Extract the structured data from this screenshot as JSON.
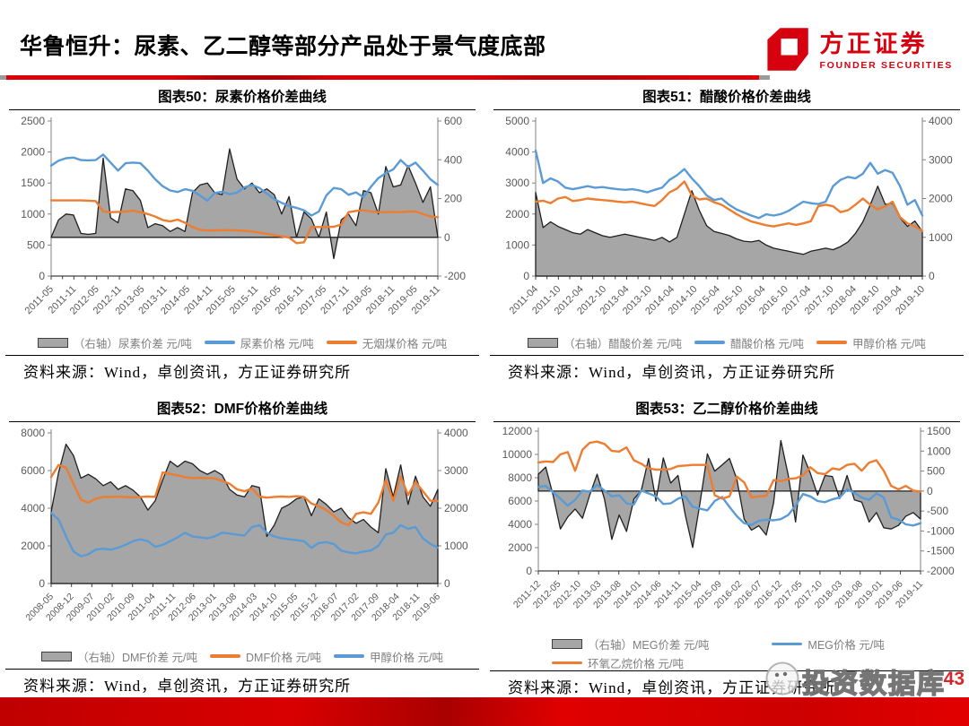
{
  "header": {
    "title": "华鲁恒升：尿素、乙二醇等部分产品处于景气度底部",
    "logo": {
      "name_cn": "方正证券",
      "name_en": "FOUNDER SECURITIES",
      "color": "#d7000f"
    }
  },
  "footer": {
    "page_number": "43",
    "watermark_text": "投资数据库",
    "bar_color": "#d40000"
  },
  "colors": {
    "blue": "#5b9bd5",
    "orange": "#ed7d31",
    "gray_fill": "#a6a6a6",
    "area_stroke": "#1f1f1f",
    "axis": "#808080",
    "tick_text": "#595959",
    "legend_text": "#7f7f7f"
  },
  "chart_data": [
    {
      "id": "figure-50",
      "type": "area+line",
      "title": "图表50：尿素价格价差曲线",
      "source": "资料来源：Wind，卓创资讯，方正证券研究所",
      "left_axis": {
        "min": 0,
        "max": 2500,
        "ticks": [
          0,
          500,
          1000,
          1500,
          2000,
          2500
        ]
      },
      "right_axis": {
        "min": -200,
        "max": 600,
        "ticks": [
          -200,
          0,
          200,
          400,
          600
        ]
      },
      "x_labels": [
        "2011-05",
        "2011-11",
        "2012-05",
        "2012-11",
        "2013-05",
        "2013-11",
        "2014-05",
        "2014-11",
        "2015-05",
        "2015-11",
        "2016-05",
        "2016-11",
        "2017-05",
        "2017-11",
        "2018-05",
        "2018-11",
        "2019-05",
        "2019-11"
      ],
      "series": [
        {
          "name": "（右轴）尿素价差 元/吨",
          "axis": "right",
          "kind": "area",
          "color": "#a6a6a6",
          "baseline": 0,
          "y": [
            0,
            90,
            120,
            115,
            20,
            15,
            20,
            408,
            100,
            75,
            250,
            240,
            190,
            50,
            70,
            60,
            30,
            50,
            30,
            230,
            270,
            280,
            230,
            220,
            456,
            300,
            250,
            280,
            230,
            250,
            220,
            120,
            210,
            0,
            130,
            95,
            0,
            130,
            -110,
            90,
            120,
            60,
            240,
            230,
            120,
            365,
            260,
            270,
            370,
            280,
            180,
            260,
            0
          ]
        },
        {
          "name": "尿素价格 元/吨",
          "axis": "left",
          "kind": "line",
          "color": "#5b9bd5",
          "y": [
            1780,
            1860,
            1900,
            1910,
            1870,
            1865,
            1870,
            1960,
            1830,
            1700,
            1820,
            1830,
            1820,
            1700,
            1560,
            1450,
            1380,
            1355,
            1400,
            1375,
            1300,
            1215,
            1340,
            1360,
            1320,
            1345,
            1430,
            1470,
            1420,
            1330,
            1240,
            1180,
            1130,
            1100,
            1060,
            975,
            1040,
            1300,
            1420,
            1400,
            1310,
            1350,
            1270,
            1440,
            1580,
            1660,
            1720,
            1870,
            1760,
            1830,
            1700,
            1560,
            1470
          ]
        },
        {
          "name": "无烟煤价格 元/吨",
          "axis": "left",
          "kind": "line",
          "color": "#ed7d31",
          "y": [
            1220,
            1220,
            1220,
            1220,
            1220,
            1215,
            1210,
            1040,
            1030,
            1035,
            1040,
            1055,
            1030,
            1000,
            960,
            905,
            880,
            910,
            860,
            790,
            745,
            735,
            735,
            740,
            740,
            735,
            730,
            720,
            700,
            680,
            660,
            640,
            620,
            530,
            545,
            790,
            790,
            790,
            795,
            830,
            1030,
            1050,
            1060,
            1040,
            1030,
            1030,
            1035,
            1030,
            1040,
            1040,
            1000,
            960,
            950
          ]
        }
      ]
    },
    {
      "id": "figure-51",
      "type": "area+line",
      "title": "图表51：醋酸价格价差曲线",
      "source": "资料来源：Wind，卓创资讯，方正证券研究所",
      "left_axis": {
        "min": 0,
        "max": 5000,
        "ticks": [
          0,
          1000,
          2000,
          3000,
          4000,
          5000
        ]
      },
      "right_axis": {
        "min": 0,
        "max": 4000,
        "ticks": [
          0,
          1000,
          2000,
          3000,
          4000
        ]
      },
      "x_labels": [
        "2011-04",
        "2011-10",
        "2012-04",
        "2012-10",
        "2013-04",
        "2013-10",
        "2014-04",
        "2014-10",
        "2015-04",
        "2015-10",
        "2016-04",
        "2016-10",
        "2017-04",
        "2017-10",
        "2018-04",
        "2018-10",
        "2019-04",
        "2019-10"
      ],
      "series": [
        {
          "name": "（右轴）醋酸价差 元/吨",
          "axis": "right",
          "kind": "area",
          "color": "#a6a6a6",
          "baseline": 0,
          "y": [
            2160,
            1250,
            1400,
            1280,
            1200,
            1120,
            1080,
            1200,
            1120,
            1040,
            1000,
            1040,
            1080,
            1040,
            1000,
            960,
            920,
            1000,
            880,
            1000,
            1600,
            2200,
            1700,
            1300,
            1150,
            1100,
            1050,
            960,
            900,
            880,
            920,
            800,
            720,
            680,
            640,
            600,
            560,
            640,
            680,
            720,
            680,
            760,
            880,
            1100,
            1400,
            1840,
            2320,
            1850,
            1880,
            1500,
            1280,
            1420,
            1150
          ]
        },
        {
          "name": "醋酸价格 元/吨",
          "axis": "left",
          "kind": "line",
          "color": "#5b9bd5",
          "y": [
            4050,
            3000,
            3150,
            3050,
            2850,
            2800,
            2850,
            2900,
            2850,
            2870,
            2830,
            2800,
            2780,
            2800,
            2760,
            2700,
            2780,
            2850,
            3100,
            3250,
            3450,
            3150,
            2900,
            2600,
            2450,
            2500,
            2300,
            2150,
            2050,
            1950,
            1870,
            1990,
            1950,
            2000,
            2100,
            2250,
            2400,
            2350,
            2320,
            2400,
            2900,
            3100,
            3200,
            3150,
            3300,
            3650,
            3300,
            3420,
            3330,
            2900,
            2300,
            2450,
            1950
          ]
        },
        {
          "name": "甲醇价格 元/吨",
          "axis": "left",
          "kind": "line",
          "color": "#ed7d31",
          "y": [
            2400,
            2430,
            2350,
            2500,
            2550,
            2420,
            2450,
            2500,
            2470,
            2450,
            2430,
            2400,
            2380,
            2400,
            2350,
            2300,
            2260,
            2450,
            2700,
            2820,
            3050,
            2600,
            2470,
            2500,
            2380,
            2300,
            2150,
            2000,
            1870,
            1760,
            1700,
            1640,
            1600,
            1650,
            1700,
            1650,
            1700,
            1770,
            2250,
            2300,
            2250,
            2060,
            2120,
            2300,
            2500,
            2300,
            2150,
            2250,
            2400,
            1900,
            1700,
            1600,
            1450
          ]
        }
      ]
    },
    {
      "id": "figure-52",
      "type": "area+line",
      "title": "图表52：DMF价格价差曲线",
      "source": "资料来源：Wind，卓创资讯，方正证券研究所",
      "left_axis": {
        "min": 0,
        "max": 8000,
        "ticks": [
          0,
          2000,
          4000,
          6000,
          8000
        ]
      },
      "right_axis": {
        "min": 0,
        "max": 4000,
        "ticks": [
          0,
          1000,
          2000,
          3000,
          4000
        ]
      },
      "x_labels": [
        "2008-05",
        "2008-12",
        "2009-07",
        "2010-02",
        "2010-09",
        "2011-04",
        "2011-11",
        "2012-06",
        "2013-01",
        "2013-08",
        "2014-03",
        "2014-10",
        "2015-05",
        "2015-12",
        "2016-07",
        "2017-02",
        "2017-09",
        "2018-04",
        "2018-11",
        "2019-06"
      ],
      "series": [
        {
          "name": "（右轴）DMF价差 元/吨",
          "axis": "right",
          "kind": "area",
          "color": "#a6a6a6",
          "baseline": 0,
          "y": [
            1900,
            2950,
            3700,
            3400,
            2800,
            2900,
            2780,
            2600,
            2700,
            2500,
            2600,
            2480,
            2300,
            1950,
            2200,
            2750,
            3250,
            3100,
            3250,
            3180,
            3000,
            2900,
            3000,
            2880,
            2500,
            2350,
            2300,
            2600,
            2550,
            1250,
            1550,
            2000,
            2100,
            2250,
            2300,
            1800,
            2250,
            2100,
            1900,
            2000,
            1750,
            1600,
            1700,
            1500,
            1350,
            3050,
            2300,
            3150,
            2100,
            2850,
            2300,
            2050,
            2500
          ]
        },
        {
          "name": "DMF价格 元/吨",
          "axis": "left",
          "kind": "line",
          "color": "#ed7d31",
          "y": [
            5650,
            6300,
            6150,
            5300,
            4450,
            4300,
            4500,
            4600,
            4600,
            4620,
            4600,
            4580,
            4600,
            4620,
            4600,
            5900,
            5820,
            5750,
            5650,
            5600,
            5620,
            5600,
            5580,
            5450,
            5300,
            5000,
            4900,
            5050,
            4620,
            4560,
            4600,
            4620,
            4600,
            4640,
            4600,
            4250,
            4100,
            3900,
            3600,
            3250,
            3100,
            3700,
            3780,
            3700,
            4300,
            5500,
            4400,
            5700,
            4700,
            5400,
            4900,
            4400,
            4380
          ]
        },
        {
          "name": "甲醇价格 元/吨",
          "axis": "left",
          "kind": "line",
          "color": "#5b9bd5",
          "y": [
            3750,
            3400,
            2500,
            1700,
            1450,
            1550,
            1800,
            1850,
            1800,
            1900,
            2050,
            2250,
            2350,
            2250,
            1950,
            2050,
            2250,
            2450,
            2700,
            2500,
            2450,
            2400,
            2500,
            2700,
            2650,
            2600,
            2550,
            3000,
            3100,
            2700,
            2500,
            2400,
            2350,
            2300,
            2250,
            1900,
            2150,
            2200,
            2100,
            1750,
            1650,
            1600,
            1700,
            1750,
            2000,
            2600,
            2700,
            3100,
            2900,
            3000,
            2400,
            2100,
            1900
          ]
        }
      ]
    },
    {
      "id": "figure-53",
      "type": "area+line",
      "title": "图表53：乙二醇价格价差曲线",
      "source": "资料来源：Wind，卓创资讯，方正证券研究所",
      "left_axis": {
        "min": 0,
        "max": 12000,
        "ticks": [
          0,
          2000,
          4000,
          6000,
          8000,
          10000,
          12000
        ]
      },
      "right_axis": {
        "min": -2000,
        "max": 1500,
        "ticks": [
          -2000,
          -1500,
          -1000,
          -500,
          0,
          500,
          1000,
          1500
        ]
      },
      "x_labels": [
        "2011-12",
        "2012-05",
        "2012-10",
        "2013-03",
        "2013-08",
        "2014-01",
        "2014-06",
        "2014-11",
        "2015-04",
        "2015-09",
        "2016-02",
        "2016-07",
        "2016-12",
        "2017-05",
        "2017-10",
        "2018-03",
        "2018-08",
        "2019-01",
        "2019-06",
        "2019-11"
      ],
      "legend_break": 2,
      "series": [
        {
          "name": "（右轴）MEG价差 元/吨",
          "axis": "right",
          "kind": "area",
          "color": "#a6a6a6",
          "baseline": 0,
          "y": [
            420,
            600,
            -100,
            -950,
            -650,
            -450,
            -680,
            -100,
            420,
            -200,
            -1210,
            -600,
            -1010,
            -200,
            13,
            815,
            -250,
            830,
            200,
            390,
            -600,
            -1415,
            -300,
            930,
            500,
            655,
            815,
            300,
            -700,
            -980,
            -870,
            -1100,
            -300,
            1265,
            400,
            -775,
            900,
            450,
            -105,
            390,
            365,
            -190,
            390,
            -220,
            -280,
            -775,
            -540,
            -920,
            -950,
            -860,
            -630,
            -540,
            -700
          ]
        },
        {
          "name": "MEG价格 元/吨",
          "axis": "left",
          "kind": "line",
          "color": "#5b9bd5",
          "y": [
            7200,
            7300,
            6750,
            6200,
            5600,
            6100,
            6900,
            6800,
            7400,
            6900,
            6400,
            6500,
            5800,
            5700,
            6900,
            6650,
            6400,
            5750,
            5800,
            6200,
            6400,
            5500,
            5350,
            5200,
            6000,
            6350,
            5500,
            4700,
            4100,
            3950,
            4300,
            4400,
            4350,
            4450,
            4800,
            5600,
            6600,
            6400,
            6000,
            5900,
            6150,
            6300,
            7000,
            6700,
            6300,
            6100,
            6650,
            6300,
            4600,
            4400,
            4000,
            3900,
            4100
          ]
        },
        {
          "name": "环氧乙烷价格 元/吨",
          "axis": "left",
          "kind": "line",
          "color": "#ed7d31",
          "y": [
            9300,
            9400,
            9350,
            10000,
            10200,
            8600,
            10400,
            11000,
            11100,
            10900,
            10300,
            10250,
            10600,
            9500,
            9200,
            8800,
            8700,
            8700,
            8750,
            9000,
            9050,
            9100,
            9100,
            9100,
            6500,
            6200,
            6400,
            8100,
            7600,
            6300,
            6400,
            6450,
            7800,
            7700,
            7900,
            7950,
            8200,
            8900,
            8400,
            8300,
            8800,
            8700,
            9100,
            9200,
            8600,
            9300,
            9500,
            8600,
            7300,
            7000,
            7300,
            6900,
            6800
          ]
        }
      ]
    }
  ]
}
